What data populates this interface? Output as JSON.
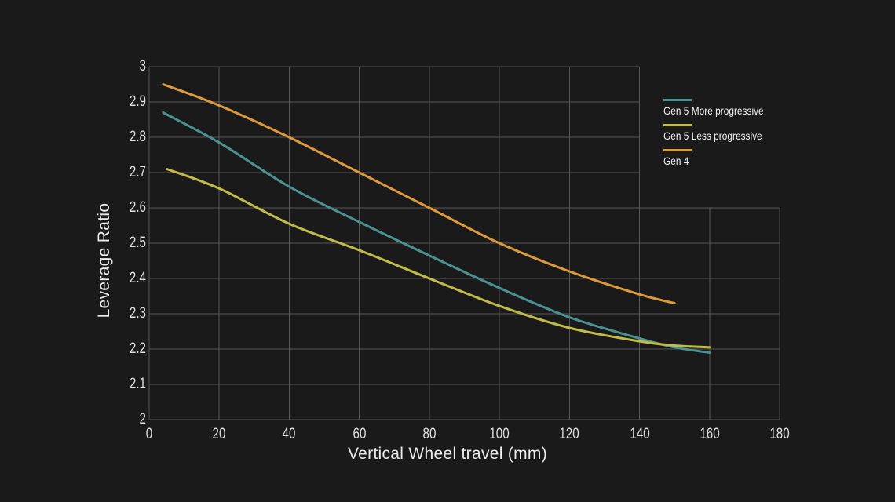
{
  "window": {
    "background": "#1a1a1a"
  },
  "chart_data": {
    "type": "line",
    "title": "",
    "xlabel": "Vertical Wheel travel (mm)",
    "ylabel": "Leverage Ratio",
    "xlim": [
      0,
      180
    ],
    "ylim": [
      2,
      3
    ],
    "xticks": [
      0,
      20,
      40,
      60,
      80,
      100,
      120,
      140,
      160,
      180
    ],
    "yticks": [
      2,
      2.1,
      2.2,
      2.3,
      2.4,
      2.5,
      2.6,
      2.7,
      2.8,
      2.9,
      3
    ],
    "grid": true,
    "grid_color": "#565656",
    "text_color": "#e0e0e0",
    "legend_position": "top-right",
    "grid_notch": {
      "x_beyond": 140,
      "y_above": 2.6
    },
    "series": [
      {
        "name": "Gen 5 More progressive",
        "color": "#4a9292",
        "points": [
          [
            4,
            2.87
          ],
          [
            20,
            2.785
          ],
          [
            40,
            2.66
          ],
          [
            60,
            2.56
          ],
          [
            80,
            2.465
          ],
          [
            100,
            2.373
          ],
          [
            120,
            2.29
          ],
          [
            140,
            2.23
          ],
          [
            150,
            2.205
          ],
          [
            160,
            2.19
          ]
        ]
      },
      {
        "name": "Gen 5 Less progressive",
        "color": "#c1bc46",
        "points": [
          [
            5,
            2.71
          ],
          [
            20,
            2.655
          ],
          [
            40,
            2.555
          ],
          [
            60,
            2.48
          ],
          [
            80,
            2.4
          ],
          [
            100,
            2.322
          ],
          [
            120,
            2.26
          ],
          [
            140,
            2.222
          ],
          [
            150,
            2.21
          ],
          [
            160,
            2.205
          ]
        ]
      },
      {
        "name": "Gen 4",
        "color": "#de9a38",
        "points": [
          [
            4,
            2.95
          ],
          [
            20,
            2.89
          ],
          [
            40,
            2.8
          ],
          [
            60,
            2.7
          ],
          [
            80,
            2.6
          ],
          [
            100,
            2.5
          ],
          [
            120,
            2.42
          ],
          [
            140,
            2.355
          ],
          [
            150,
            2.33
          ]
        ]
      }
    ]
  }
}
